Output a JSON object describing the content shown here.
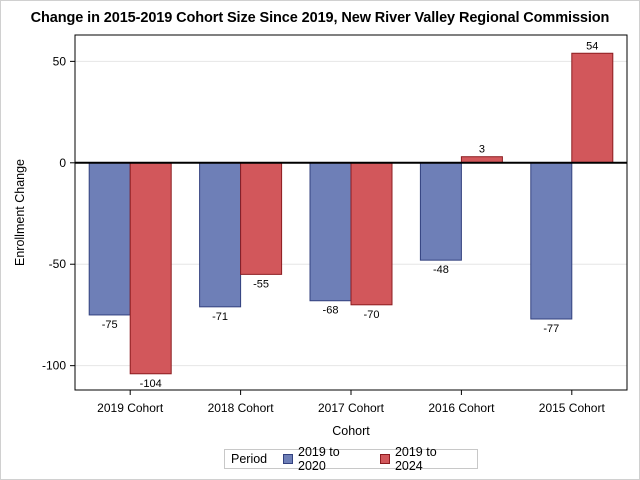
{
  "chart_data": {
    "type": "bar",
    "title": "Change in 2015-2019 Cohort Size Since 2019, New River Valley Regional Commission",
    "xlabel": "Cohort",
    "ylabel": "Enrollment Change",
    "categories": [
      "2019 Cohort",
      "2018 Cohort",
      "2017 Cohort",
      "2016 Cohort",
      "2015 Cohort"
    ],
    "series": [
      {
        "name": "2019 to 2020",
        "values": [
          -75,
          -71,
          -68,
          -48,
          -77
        ],
        "color": "#6e7fb7",
        "stroke": "#33417f"
      },
      {
        "name": "2019 to 2024",
        "values": [
          -104,
          -55,
          -70,
          3,
          54
        ],
        "color": "#d2575b",
        "stroke": "#8c1c20"
      }
    ],
    "ylim": [
      -112,
      63
    ],
    "yticks": [
      50,
      0,
      -50,
      -100
    ],
    "grid": true,
    "legend": {
      "title": "Period",
      "placement": "bottom-center"
    }
  }
}
